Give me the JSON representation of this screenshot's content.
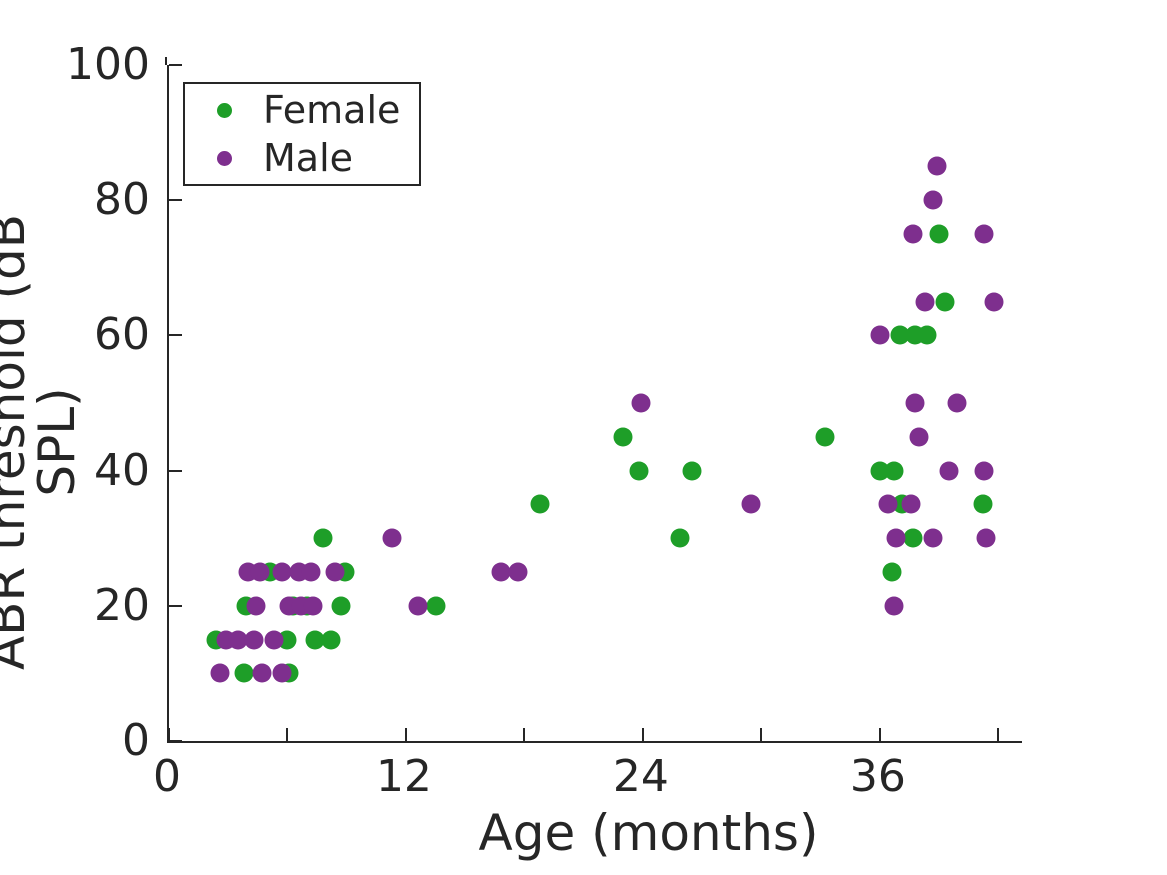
{
  "chart_data": {
    "type": "scatter",
    "title": "",
    "xlabel": "Age (months)",
    "ylabel": "ABR threshold (dB SPL)",
    "xlim": [
      0,
      43.2
    ],
    "ylim": [
      0,
      100
    ],
    "x_major_ticks": [
      0,
      12,
      24,
      36
    ],
    "x_minor_ticks": [
      6,
      18,
      30,
      42
    ],
    "y_ticks": [
      0,
      20,
      40,
      60,
      80,
      100
    ],
    "grid": false,
    "legend_position": "top-left",
    "marker_size_px": 19,
    "series": [
      {
        "name": "Female",
        "color": "#1e9e28",
        "points": [
          [
            3.8,
            10
          ],
          [
            6.1,
            10
          ],
          [
            2.4,
            15
          ],
          [
            6.0,
            15
          ],
          [
            7.4,
            15
          ],
          [
            8.2,
            15
          ],
          [
            3.9,
            20
          ],
          [
            6.3,
            20
          ],
          [
            7.0,
            20
          ],
          [
            8.7,
            20
          ],
          [
            13.5,
            20
          ],
          [
            5.1,
            25
          ],
          [
            8.9,
            25
          ],
          [
            36.6,
            25
          ],
          [
            7.8,
            30
          ],
          [
            25.9,
            30
          ],
          [
            37.7,
            30
          ],
          [
            18.8,
            35
          ],
          [
            37.1,
            35
          ],
          [
            41.2,
            35
          ],
          [
            23.8,
            40
          ],
          [
            26.5,
            40
          ],
          [
            36.0,
            40
          ],
          [
            36.7,
            40
          ],
          [
            23.0,
            45
          ],
          [
            33.2,
            45
          ],
          [
            37.0,
            60
          ],
          [
            37.8,
            60
          ],
          [
            38.4,
            60
          ],
          [
            39.3,
            65
          ],
          [
            39.0,
            75
          ]
        ]
      },
      {
        "name": "Male",
        "color": "#7e2f8e",
        "points": [
          [
            2.6,
            10
          ],
          [
            4.7,
            10
          ],
          [
            5.7,
            10
          ],
          [
            2.9,
            15
          ],
          [
            3.5,
            15
          ],
          [
            4.3,
            15
          ],
          [
            5.3,
            15
          ],
          [
            4.4,
            20
          ],
          [
            6.1,
            20
          ],
          [
            6.7,
            20
          ],
          [
            7.3,
            20
          ],
          [
            12.6,
            20
          ],
          [
            36.7,
            20
          ],
          [
            4.0,
            25
          ],
          [
            4.6,
            25
          ],
          [
            5.7,
            25
          ],
          [
            6.6,
            25
          ],
          [
            7.2,
            25
          ],
          [
            8.4,
            25
          ],
          [
            16.8,
            25
          ],
          [
            17.7,
            25
          ],
          [
            11.3,
            30
          ],
          [
            36.8,
            30
          ],
          [
            38.7,
            30
          ],
          [
            41.4,
            30
          ],
          [
            29.5,
            35
          ],
          [
            36.4,
            35
          ],
          [
            37.6,
            35
          ],
          [
            39.5,
            40
          ],
          [
            41.3,
            40
          ],
          [
            38.0,
            45
          ],
          [
            23.9,
            50
          ],
          [
            37.8,
            50
          ],
          [
            39.9,
            50
          ],
          [
            36.0,
            60
          ],
          [
            38.3,
            65
          ],
          [
            41.8,
            65
          ],
          [
            37.7,
            75
          ],
          [
            41.3,
            75
          ],
          [
            38.7,
            80
          ],
          [
            38.9,
            85
          ]
        ]
      }
    ]
  },
  "colors": {
    "axis": "#262626",
    "background": "#ffffff",
    "female": "#1e9e28",
    "male": "#7e2f8e"
  }
}
